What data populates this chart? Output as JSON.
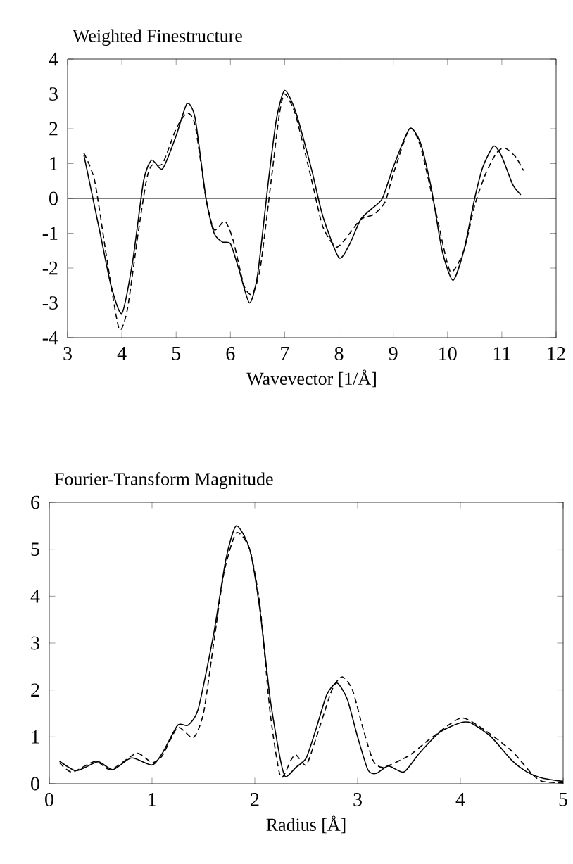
{
  "chart_data": [
    {
      "type": "line",
      "title": "Weighted Finestructure",
      "xlabel": "Wavevector [1/Å]",
      "xlim": [
        3,
        12
      ],
      "ylim": [
        -4,
        4
      ],
      "xticks": [
        3,
        4,
        5,
        6,
        7,
        8,
        9,
        10,
        11,
        12
      ],
      "yticks": [
        -4,
        -3,
        -2,
        -1,
        0,
        1,
        2,
        3,
        4
      ],
      "ref_lines": [
        {
          "axis": "y",
          "value": 0,
          "color": "#000000"
        }
      ],
      "series": [
        {
          "color": "#000000",
          "line_style": "solid",
          "x": [
            3.3,
            3.6,
            3.8,
            4.0,
            4.2,
            4.4,
            4.55,
            4.75,
            5.0,
            5.2,
            5.35,
            5.55,
            5.7,
            5.85,
            6.0,
            6.15,
            6.35,
            6.5,
            6.7,
            6.85,
            7.0,
            7.2,
            7.5,
            7.7,
            8.0,
            8.2,
            8.4,
            8.6,
            8.8,
            9.0,
            9.3,
            9.5,
            9.7,
            9.9,
            10.1,
            10.3,
            10.5,
            10.65,
            10.85,
            11.0,
            11.2,
            11.35
          ],
          "values": [
            1.25,
            -1,
            -2.5,
            -3.3,
            -1.8,
            0.5,
            1.1,
            0.85,
            1.8,
            2.72,
            2.3,
            0,
            -1.0,
            -1.25,
            -1.3,
            -2.0,
            -3.0,
            -2.2,
            0.5,
            2.3,
            3.1,
            2.5,
            0.8,
            -0.5,
            -1.7,
            -1.3,
            -0.6,
            -0.3,
            0,
            0.9,
            2.0,
            1.6,
            0.3,
            -1.5,
            -2.35,
            -1.5,
            0,
            0.9,
            1.5,
            1.2,
            0.4,
            0.1
          ]
        },
        {
          "color": "#000000",
          "line_style": "dashed",
          "x": [
            3.3,
            3.5,
            3.75,
            3.95,
            4.1,
            4.3,
            4.45,
            4.55,
            4.75,
            5.0,
            5.2,
            5.35,
            5.55,
            5.7,
            5.9,
            6.05,
            6.25,
            6.4,
            6.55,
            6.75,
            6.9,
            7.0,
            7.2,
            7.5,
            7.7,
            7.95,
            8.2,
            8.4,
            8.65,
            8.85,
            9.0,
            9.3,
            9.5,
            9.8,
            10.05,
            10.3,
            10.5,
            10.7,
            10.9,
            11.05,
            11.25,
            11.4
          ],
          "values": [
            1.3,
            0.5,
            -2,
            -3.75,
            -3.2,
            -1,
            0.5,
            0.95,
            1.0,
            2.0,
            2.45,
            2.1,
            0,
            -0.9,
            -0.65,
            -1.2,
            -2.5,
            -2.75,
            -2.0,
            0.5,
            2.4,
            3.0,
            2.4,
            0.5,
            -0.8,
            -1.4,
            -1.0,
            -0.6,
            -0.45,
            -0.1,
            0.7,
            2.0,
            1.5,
            -0.5,
            -2.1,
            -1.5,
            -0.2,
            0.7,
            1.3,
            1.45,
            1.2,
            0.8
          ]
        }
      ]
    },
    {
      "type": "line",
      "title": "Fourier-Transform Magnitude",
      "xlabel": "Radius [Å]",
      "xlim": [
        0,
        5
      ],
      "ylim": [
        0,
        6
      ],
      "xticks": [
        0,
        1,
        2,
        3,
        4,
        5
      ],
      "yticks": [
        0,
        1,
        2,
        3,
        4,
        5,
        6
      ],
      "series": [
        {
          "color": "#000000",
          "line_style": "solid",
          "x": [
            0.1,
            0.25,
            0.35,
            0.48,
            0.62,
            0.8,
            1.0,
            1.1,
            1.25,
            1.35,
            1.45,
            1.6,
            1.72,
            1.82,
            1.95,
            2.05,
            2.15,
            2.25,
            2.3,
            2.4,
            2.5,
            2.6,
            2.7,
            2.8,
            2.9,
            3.0,
            3.1,
            3.18,
            3.3,
            3.45,
            3.6,
            3.8,
            4.0,
            4.1,
            4.3,
            4.5,
            4.65,
            4.8,
            5.0
          ],
          "values": [
            0.48,
            0.28,
            0.35,
            0.47,
            0.3,
            0.55,
            0.4,
            0.65,
            1.25,
            1.25,
            1.6,
            3.2,
            4.8,
            5.5,
            5.0,
            3.7,
            1.8,
            0.5,
            0.15,
            0.35,
            0.55,
            1.2,
            1.9,
            2.15,
            1.8,
            1.0,
            0.3,
            0.22,
            0.38,
            0.25,
            0.65,
            1.1,
            1.3,
            1.3,
            1.0,
            0.5,
            0.25,
            0.12,
            0.05
          ]
        },
        {
          "color": "#000000",
          "line_style": "dashed",
          "x": [
            0.1,
            0.22,
            0.45,
            0.6,
            0.85,
            1.0,
            1.1,
            1.25,
            1.4,
            1.5,
            1.6,
            1.7,
            1.82,
            1.95,
            2.05,
            2.15,
            2.25,
            2.35,
            2.4,
            2.5,
            2.6,
            2.75,
            2.85,
            2.95,
            3.05,
            3.15,
            3.25,
            3.5,
            3.7,
            4.0,
            4.2,
            4.5,
            4.7,
            4.8,
            5.0
          ],
          "values": [
            0.45,
            0.25,
            0.48,
            0.3,
            0.65,
            0.45,
            0.6,
            1.2,
            0.98,
            1.5,
            3.0,
            4.5,
            5.35,
            5.0,
            3.8,
            1.5,
            0.15,
            0.5,
            0.62,
            0.4,
            1.0,
            2.0,
            2.28,
            2.0,
            1.2,
            0.5,
            0.35,
            0.6,
            0.95,
            1.4,
            1.2,
            0.7,
            0.2,
            0.05,
            0.02
          ]
        }
      ]
    }
  ]
}
